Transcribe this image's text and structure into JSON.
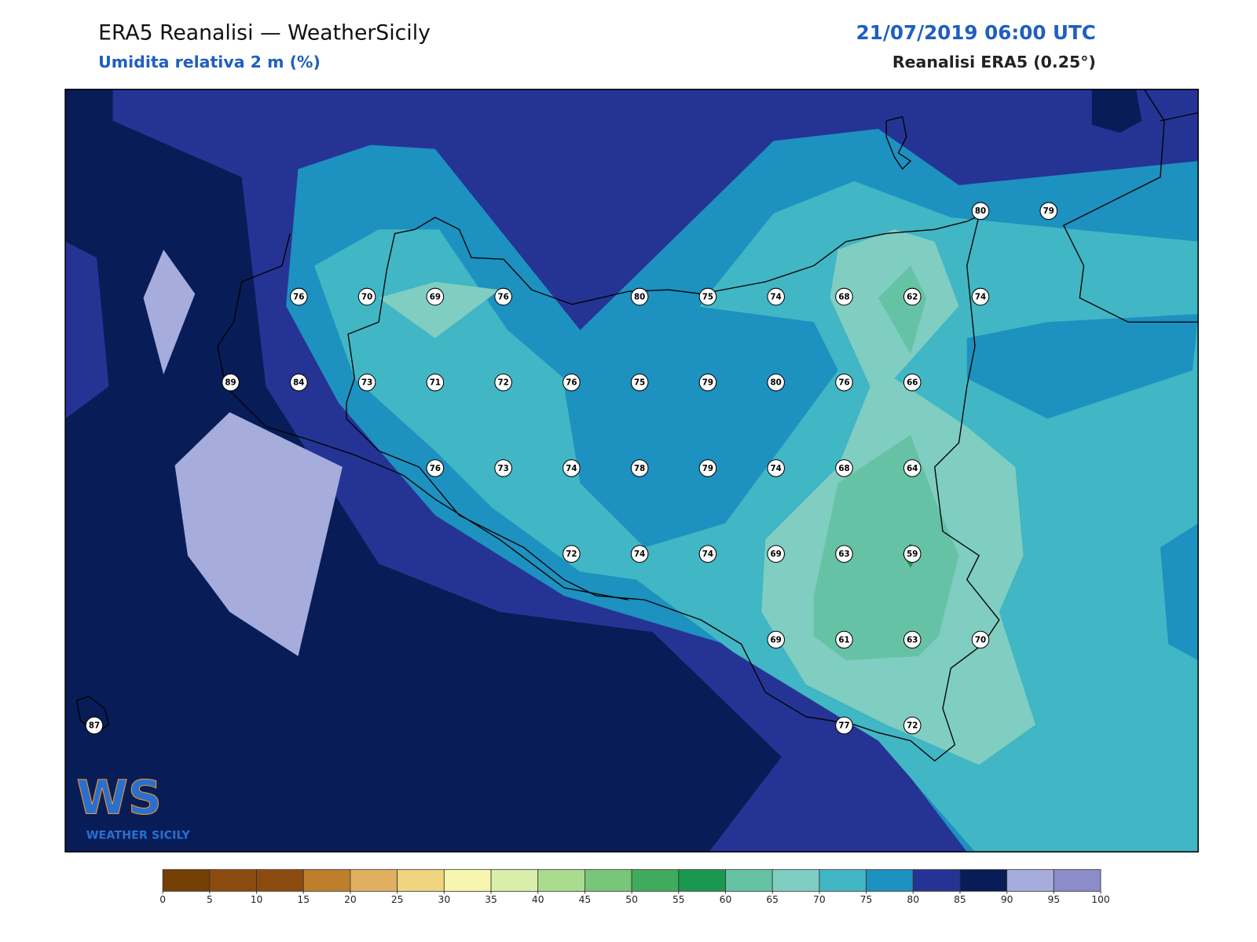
{
  "header": {
    "title": "ERA5 Reanalisi — WeatherSicily",
    "subtitle": "Umidita relativa 2 m (%)",
    "datetime": "21/07/2019 06:00 UTC",
    "source": "Reanalisi ERA5 (0.25°)"
  },
  "stations": {
    "rows": [
      [
        null,
        null,
        null,
        null,
        null,
        null,
        null,
        null,
        null,
        null,
        null,
        null,
        null,
        80,
        79
      ],
      [
        null,
        null,
        null,
        76,
        70,
        69,
        76,
        null,
        80,
        75,
        74,
        68,
        62,
        74,
        null
      ],
      [
        null,
        null,
        89,
        84,
        73,
        71,
        72,
        76,
        75,
        79,
        80,
        76,
        66,
        null,
        null
      ],
      [
        null,
        null,
        null,
        null,
        null,
        76,
        73,
        74,
        78,
        79,
        74,
        68,
        64,
        null,
        null
      ],
      [
        null,
        null,
        null,
        null,
        null,
        null,
        null,
        72,
        74,
        74,
        69,
        63,
        59,
        null,
        null
      ],
      [
        null,
        null,
        null,
        null,
        null,
        null,
        null,
        null,
        null,
        null,
        69,
        61,
        63,
        70,
        null
      ],
      [
        87,
        null,
        null,
        null,
        null,
        null,
        null,
        null,
        null,
        null,
        null,
        77,
        72,
        null,
        null
      ]
    ]
  },
  "colorbar": {
    "ticks": [
      0,
      5,
      10,
      15,
      20,
      25,
      30,
      35,
      40,
      45,
      50,
      55,
      60,
      65,
      70,
      75,
      80,
      85,
      90,
      95,
      100
    ],
    "colors": [
      "#744005",
      "#8c4b0e",
      "#8c4b0e",
      "#be7f2c",
      "#e0b060",
      "#f0d580",
      "#f6f6b0",
      "#d8eeaa",
      "#aadc90",
      "#78c679",
      "#41ab5d",
      "#1a9850",
      "#66c2a4",
      "#80cdc1",
      "#41b6c4",
      "#1d91c0",
      "#253494",
      "#081d58",
      "#a6acdb",
      "#8c8cc8"
    ]
  },
  "logo": {
    "mark": "WS",
    "name": "WEATHER SICILY"
  }
}
